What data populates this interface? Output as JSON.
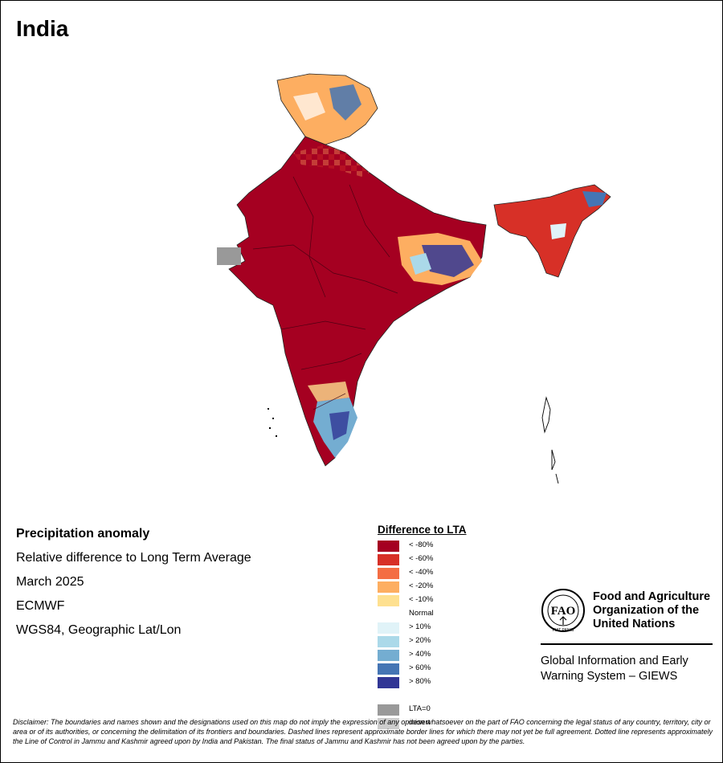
{
  "title": "India",
  "info": {
    "heading": "Precipitation anomaly",
    "description": "Relative difference to Long Term Average",
    "period": "March 2025",
    "source": "ECMWF",
    "projection": "WGS84, Geographic Lat/Lon"
  },
  "legend": {
    "title": "Difference to LTA",
    "items": [
      {
        "label": "< -80%",
        "color": "#a50021"
      },
      {
        "label": "< -60%",
        "color": "#d73027"
      },
      {
        "label": "< -40%",
        "color": "#f46d43"
      },
      {
        "label": "< -20%",
        "color": "#fdae61"
      },
      {
        "label": "< -10%",
        "color": "#fee090"
      },
      {
        "label": "Normal",
        "color": "#ffffff"
      },
      {
        "label": "> 10%",
        "color": "#e0f3f8"
      },
      {
        "label": "> 20%",
        "color": "#abd9e9"
      },
      {
        "label": "> 40%",
        "color": "#74add1"
      },
      {
        "label": "> 60%",
        "color": "#4575b4"
      },
      {
        "label": "> 80%",
        "color": "#313695"
      },
      {
        "label": "",
        "color": ""
      },
      {
        "label": "LTA=0",
        "color": "#999999"
      },
      {
        "label": "desert",
        "color": "#cccccc"
      }
    ]
  },
  "fao": {
    "logo_letters": "FAO",
    "logo_motto": "FIAT PANIS",
    "name_line1": "Food and Agriculture",
    "name_line2": "Organization of the",
    "name_line3": "United Nations",
    "giews_line1": "Global Information and Early",
    "giews_line2": "Warning System – GIEWS"
  },
  "disclaimer": "Disclaimer: The boundaries and names shown and the designations used on this map do not imply the expression of any opinion whatsoever on the part of FAO concerning the legal status of any country, territory, city or area or of its authorities, or concerning the delimitation of its frontiers and boundaries. Dashed lines represent approximate border lines for which there may not yet be full agreement. Dotted line represents approximately the Line of Control in Jammu and Kashmir agreed upon by India and Pakistan. The final status of Jammu and Kashmir has not been agreed upon by the parties."
}
